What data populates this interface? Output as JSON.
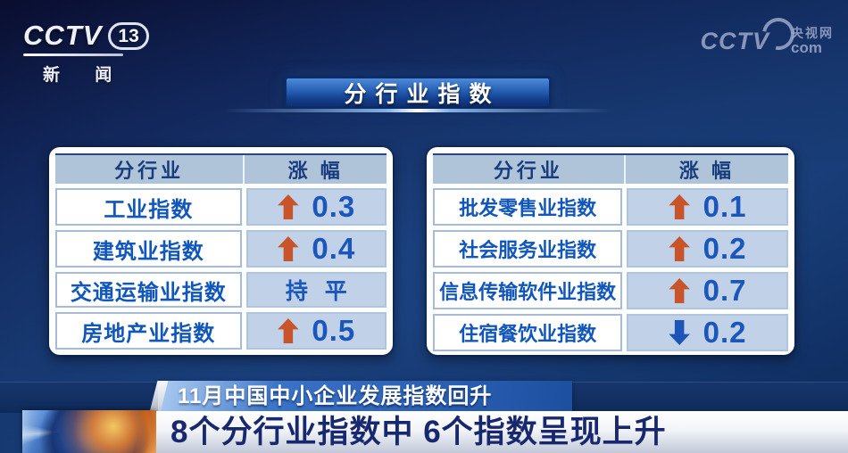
{
  "branding": {
    "cctv": "CCTV",
    "channel": "13",
    "sub": "新 闻"
  },
  "watermark": {
    "cctv": "CCTV",
    "site": "央视网",
    "com": "com"
  },
  "title_banner": {
    "label": "分行业指数"
  },
  "tables": [
    {
      "headers": {
        "industry": "分行业",
        "change": "涨 幅"
      },
      "rows": [
        {
          "name": "工业指数",
          "direction": "up",
          "value": "0.3"
        },
        {
          "name": "建筑业指数",
          "direction": "up",
          "value": "0.4"
        },
        {
          "name": "交通运输业指数",
          "direction": "flat",
          "value": "持 平"
        },
        {
          "name": "房地产业指数",
          "direction": "up",
          "value": "0.5"
        }
      ]
    },
    {
      "headers": {
        "industry": "分行业",
        "change": "涨 幅"
      },
      "rows": [
        {
          "name": "批发零售业指数",
          "direction": "up",
          "value": "0.1"
        },
        {
          "name": "社会服务业指数",
          "direction": "up",
          "value": "0.2"
        },
        {
          "name": "信息传输软件业指数",
          "direction": "up",
          "value": "0.7"
        },
        {
          "name": "住宿餐饮业指数",
          "direction": "down",
          "value": "0.2"
        }
      ]
    }
  ],
  "lower_third": {
    "topic": "11月中国中小企业发展指数回升",
    "headline": "8个分行业指数中 6个指数呈现上升"
  },
  "colors": {
    "up_arrow": "#c8542a",
    "down_arrow": "#1d55b6",
    "value_text": "#1b57bb",
    "header_bg": "#afc3d9",
    "value_cell_bg": "#c0d1e8",
    "banner_blue": "#2a64b8",
    "background_navy": "#15346a"
  },
  "chart_data": {
    "type": "table",
    "title": "分行业指数",
    "tables": [
      {
        "columns": [
          "分行业",
          "涨幅"
        ],
        "rows": [
          {
            "industry": "工业指数",
            "change": 0.3,
            "direction": "up"
          },
          {
            "industry": "建筑业指数",
            "change": 0.4,
            "direction": "up"
          },
          {
            "industry": "交通运输业指数",
            "change": "持平",
            "direction": "flat"
          },
          {
            "industry": "房地产业指数",
            "change": 0.5,
            "direction": "up"
          }
        ]
      },
      {
        "columns": [
          "分行业",
          "涨幅"
        ],
        "rows": [
          {
            "industry": "批发零售业指数",
            "change": 0.1,
            "direction": "up"
          },
          {
            "industry": "社会服务业指数",
            "change": 0.2,
            "direction": "up"
          },
          {
            "industry": "信息传输软件业指数",
            "change": 0.7,
            "direction": "up"
          },
          {
            "industry": "住宿餐饮业指数",
            "change": -0.2,
            "direction": "down"
          }
        ]
      }
    ],
    "annotations": [
      "11月中国中小企业发展指数回升",
      "8个分行业指数中 6个指数呈现上升"
    ]
  }
}
